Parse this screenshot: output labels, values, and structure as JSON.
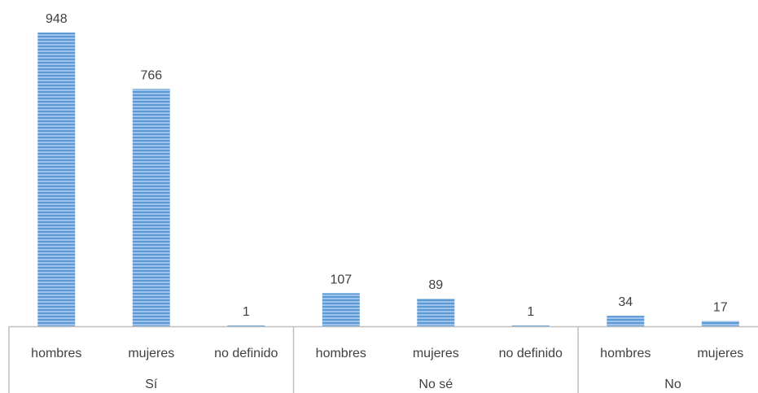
{
  "chart_data": {
    "type": "bar",
    "groups": [
      {
        "label": "Sí",
        "categories": [
          "hombres",
          "mujeres",
          "no definido"
        ],
        "values": [
          948,
          766,
          1
        ]
      },
      {
        "label": "No sé",
        "categories": [
          "hombres",
          "mujeres",
          "no definido"
        ],
        "values": [
          107,
          89,
          1
        ]
      },
      {
        "label": "No",
        "categories": [
          "hombres",
          "mujeres"
        ],
        "values": [
          34,
          17
        ]
      }
    ],
    "title": "",
    "xlabel": "",
    "ylabel": "",
    "ylim": [
      0,
      948
    ],
    "grid": false,
    "legend": "none",
    "data_labels": true,
    "bar_color": "#5b9bd5",
    "bar_stripe_color": "#a9c9ec",
    "axis_color": "#bfbfbf",
    "text_color": "#404040"
  }
}
